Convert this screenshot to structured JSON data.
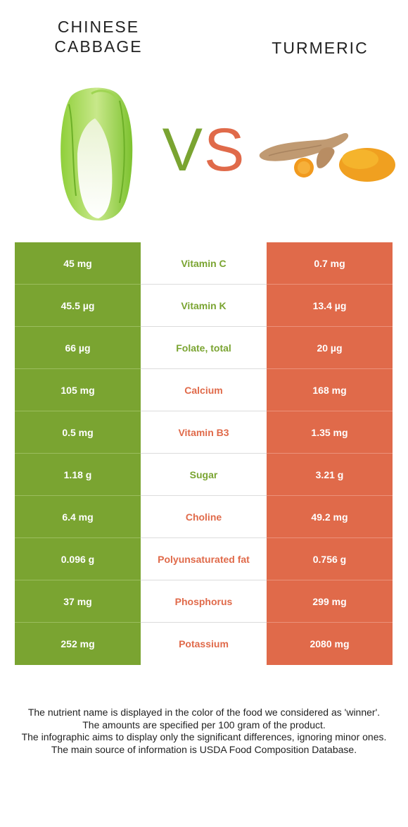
{
  "header": {
    "left_title_line1": "CHINESE",
    "left_title_line2": "CABBAGE",
    "right_title": "TURMERIC",
    "vs_v": "V",
    "vs_s": "S"
  },
  "colors": {
    "left": "#7aa431",
    "right": "#e06a4a"
  },
  "rows": [
    {
      "left": "45 mg",
      "nutrient": "Vitamin C",
      "right": "0.7 mg",
      "winner": "left"
    },
    {
      "left": "45.5 µg",
      "nutrient": "Vitamin K",
      "right": "13.4 µg",
      "winner": "left"
    },
    {
      "left": "66 µg",
      "nutrient": "Folate, total",
      "right": "20 µg",
      "winner": "left"
    },
    {
      "left": "105 mg",
      "nutrient": "Calcium",
      "right": "168 mg",
      "winner": "right"
    },
    {
      "left": "0.5 mg",
      "nutrient": "Vitamin B3",
      "right": "1.35 mg",
      "winner": "right"
    },
    {
      "left": "1.18 g",
      "nutrient": "Sugar",
      "right": "3.21 g",
      "winner": "left"
    },
    {
      "left": "6.4 mg",
      "nutrient": "Choline",
      "right": "49.2 mg",
      "winner": "right"
    },
    {
      "left": "0.096 g",
      "nutrient": "Polyunsaturated fat",
      "right": "0.756 g",
      "winner": "right"
    },
    {
      "left": "37 mg",
      "nutrient": "Phosphorus",
      "right": "299 mg",
      "winner": "right"
    },
    {
      "left": "252 mg",
      "nutrient": "Potassium",
      "right": "2080 mg",
      "winner": "right"
    }
  ],
  "footer": {
    "line1": "The nutrient name is displayed in the color of the food we considered as 'winner'.",
    "line2": "The amounts are specified per 100 gram of the product.",
    "line3": "The infographic aims to display only the significant differences, ignoring minor ones.",
    "line4": "The main source of information is USDA Food Composition Database."
  }
}
